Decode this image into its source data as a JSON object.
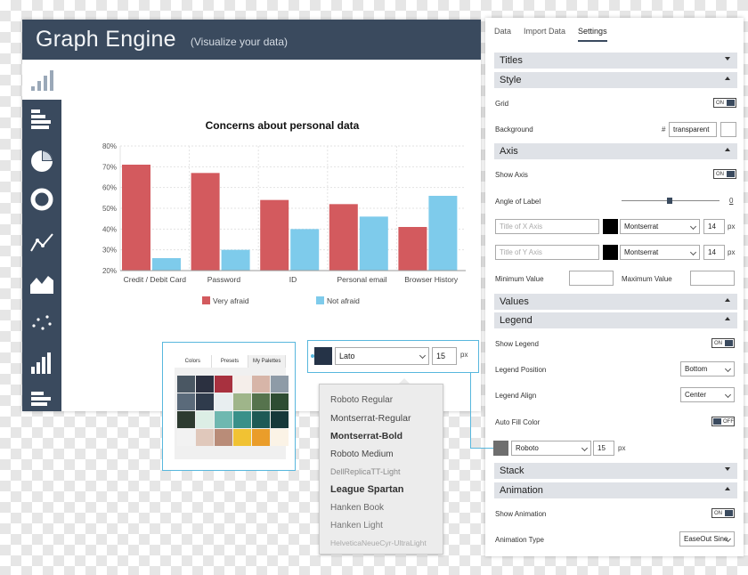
{
  "app": {
    "title": "Graph Engine",
    "subtitle": "(Visualize your data)"
  },
  "sidebar": {
    "icons": [
      "bar-horizontal-icon",
      "pie-chart-icon",
      "donut-chart-icon",
      "line-chart-icon",
      "area-chart-icon",
      "scatter-plot-icon",
      "bar-vertical-icon",
      "stacked-bar-icon"
    ]
  },
  "colors": {
    "header_bg": "#3a4a5e",
    "series_very_afraid": "#d35a5e",
    "series_not_afraid": "#7ecbeb",
    "callout": "#58b7dd"
  },
  "chart_data": {
    "type": "bar",
    "title": "Concerns about personal data",
    "categories": [
      "Credit / Debit Card",
      "Password",
      "ID",
      "Personal email",
      "Browser History"
    ],
    "series": [
      {
        "name": "Very afraid",
        "values": [
          71,
          67,
          54,
          52,
          41
        ]
      },
      {
        "name": "Not afraid",
        "values": [
          26,
          30,
          40,
          46,
          56
        ]
      }
    ],
    "ylim": [
      20,
      80
    ],
    "yticks": [
      "20%",
      "30%",
      "40%",
      "50%",
      "60%",
      "70%",
      "80%"
    ],
    "grid": true,
    "legend": "bottom"
  },
  "panel": {
    "tabs": [
      {
        "label": "Data",
        "active": false
      },
      {
        "label": "Import Data",
        "active": false
      },
      {
        "label": "Settings",
        "active": true
      }
    ],
    "sections": {
      "titles": "Titles",
      "style": "Style",
      "axis": "Axis",
      "values": "Values",
      "legend": "Legend",
      "stack": "Stack",
      "animation": "Animation"
    },
    "style": {
      "grid_label": "Grid",
      "grid_toggle": "ON",
      "background_label": "Background",
      "hash": "#",
      "background_value": "transparent"
    },
    "axis": {
      "show_axis_label": "Show Axis",
      "show_axis_toggle": "ON",
      "angle_label": "Angle of Label",
      "angle_value": "0",
      "x_title_placeholder": "Title of X Axis",
      "y_title_placeholder": "Title of Y Axis",
      "font": "Montserrat",
      "font_size": "14",
      "unit": "px",
      "min_label": "Minimum Value",
      "max_label": "Maximum Value"
    },
    "legend": {
      "show_legend_label": "Show Legend",
      "show_legend_toggle": "ON",
      "position_label": "Legend Position",
      "position_value": "Bottom",
      "align_label": "Legend Align",
      "align_value": "Center",
      "autofill_label": "Auto Fill Color",
      "autofill_toggle": "OFF",
      "font": "Roboto",
      "font_size": "15",
      "unit": "px"
    },
    "animation": {
      "show_label": "Show Animation",
      "show_toggle": "ON",
      "type_label": "Animation Type",
      "type_value": "EaseOut Sine"
    }
  },
  "palette": {
    "tabs": [
      "Colors",
      "Presets",
      "My Palettes"
    ],
    "active_tab": "My Palettes",
    "colors": [
      "#4a5763",
      "#2b3040",
      "#a8313f",
      "#f5eeea",
      "#d7b5a8",
      "#8e9ba7",
      "#5a6a7a",
      "#2f3b4c",
      "#e8eef0",
      "#9fb58a",
      "#56734d",
      "#2e4d33",
      "#2d3b30",
      "#dceee5",
      "#6fb8b0",
      "#399089",
      "#1e5a56",
      "#16383a",
      "#f2f2f2",
      "#e0c8bb",
      "#b98c78",
      "#f1c233",
      "#ea9d2a",
      "#fbf3e6"
    ]
  },
  "font_picker": {
    "selected": "Lato",
    "size": "15",
    "unit": "px",
    "options": [
      "Roboto Regular",
      "Montserrat-Regular",
      "Montserrat-Bold",
      "Roboto Medium",
      "DellReplicaTT-Light",
      "League Spartan",
      "Hanken Book",
      "Hanken Light",
      "HelveticaNeueCyr-UltraLight"
    ]
  }
}
